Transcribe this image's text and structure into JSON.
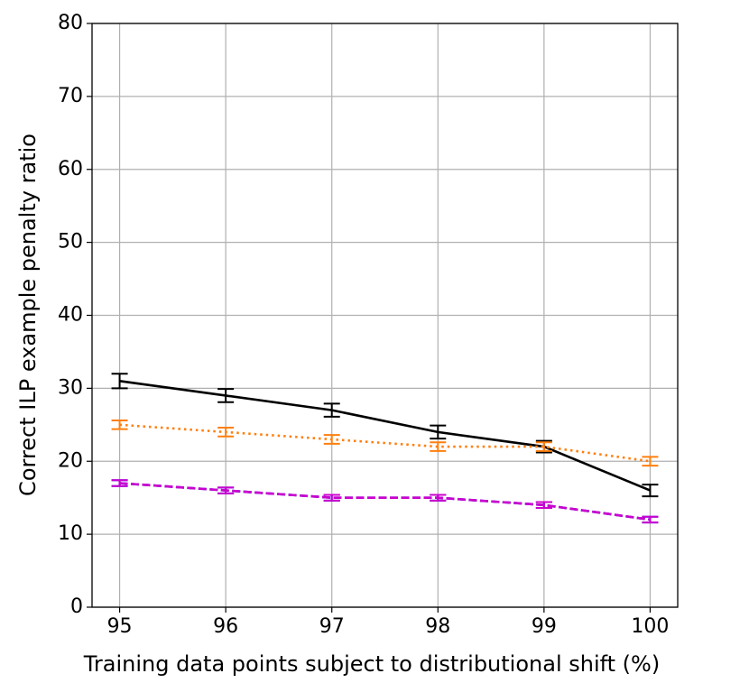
{
  "chart_data": {
    "type": "line",
    "xlabel": "Training data points subject to distributional shift (%)",
    "ylabel": "Correct ILP example penalty ratio",
    "x": [
      95,
      96,
      97,
      98,
      99,
      100
    ],
    "series": [
      {
        "color": "#000000",
        "style": "solid",
        "values": [
          31,
          29,
          27,
          24,
          22,
          16
        ],
        "errors": [
          1,
          0.9,
          0.9,
          0.9,
          0.8,
          0.8
        ]
      },
      {
        "color": "#ff7f0e",
        "style": "dotted",
        "values": [
          25,
          24,
          23,
          22,
          22,
          20
        ],
        "errors": [
          0.6,
          0.6,
          0.6,
          0.6,
          0.6,
          0.6
        ]
      },
      {
        "color": "#0000ff",
        "style": "dashed",
        "values": [
          17,
          16,
          15,
          15,
          14,
          12
        ],
        "errors": [
          0.4,
          0.4,
          0.4,
          0.4,
          0.4,
          0.4
        ]
      },
      {
        "color": "#cc00cc",
        "style": "dashed",
        "values": [
          17,
          16,
          15,
          15,
          14,
          12
        ],
        "errors": [
          0.4,
          0.4,
          0.4,
          0.4,
          0.4,
          0.4
        ]
      }
    ],
    "xlim": [
      94.74,
      100.26
    ],
    "ylim": [
      0,
      80
    ],
    "xticks": [
      95,
      96,
      97,
      98,
      99,
      100
    ],
    "yticks": [
      0,
      10,
      20,
      30,
      40,
      50,
      60,
      70,
      80
    ],
    "grid": true
  }
}
